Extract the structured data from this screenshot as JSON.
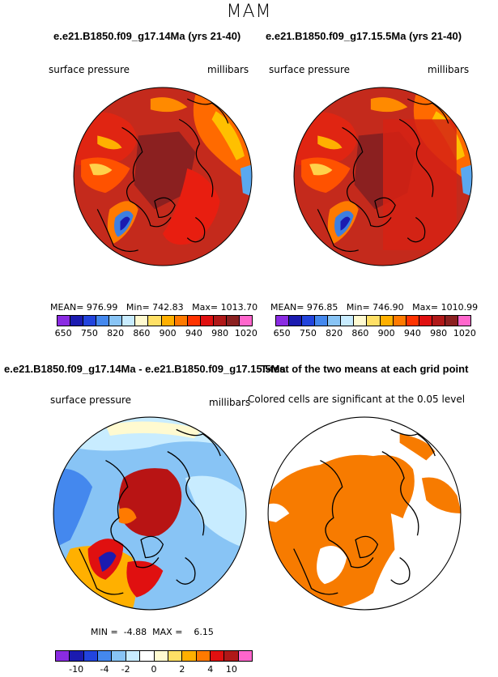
{
  "season": "MAM",
  "top_left": {
    "title": "e.e21.B1850.f09_g17.14Ma (yrs 21-40)",
    "variable": "surface pressure",
    "units": "millibars",
    "stats": {
      "mean": "976.99",
      "min": "742.83",
      "max": "1013.70"
    }
  },
  "top_right": {
    "title": "e.e21.B1850.f09_g17.15.5Ma (yrs 21-40)",
    "variable": "surface pressure",
    "units": "millibars",
    "stats": {
      "mean": "976.85",
      "min": "746.90",
      "max": "1010.99"
    }
  },
  "bottom_left": {
    "title": "e.e21.B1850.f09_g17.14Ma - e.e21.B1850.f09_g17.15.5Ma",
    "variable": "surface pressure",
    "units": "millibars",
    "stats": {
      "min": "-4.88",
      "max": "6.15"
    }
  },
  "bottom_right": {
    "title": "T-test of the two means at each grid point",
    "subtitle": "Colored cells are significant at the 0.05 level",
    "significant_color": "#f77b00"
  },
  "labels": {
    "mean": "MEAN=",
    "min": "Min=",
    "max": "Max=",
    "min_upper": "MIN =",
    "max_upper": "MAX ="
  },
  "colorbar_abs": {
    "colors": [
      "#8a2be2",
      "#1b1bb0",
      "#2244dd",
      "#4488ee",
      "#88c4f5",
      "#c8ecff",
      "#fffad0",
      "#ffe066",
      "#ffb000",
      "#ff7a00",
      "#ff3300",
      "#e01010",
      "#b01818",
      "#8b2020",
      "#ff66cc"
    ],
    "ticks": [
      "650",
      "750",
      "820",
      "860",
      "900",
      "940",
      "980",
      "1020"
    ]
  },
  "colorbar_diff": {
    "colors": [
      "#8a2be2",
      "#1b1bb0",
      "#2244dd",
      "#4488ee",
      "#88c4f5",
      "#c8ecff",
      "#ffffff",
      "#fffad0",
      "#ffe066",
      "#ffb000",
      "#ff7a00",
      "#e01010",
      "#b01818",
      "#ff66cc"
    ],
    "ticks": [
      "-10",
      "-4",
      "-2",
      "0",
      "2",
      "4",
      "10"
    ]
  }
}
